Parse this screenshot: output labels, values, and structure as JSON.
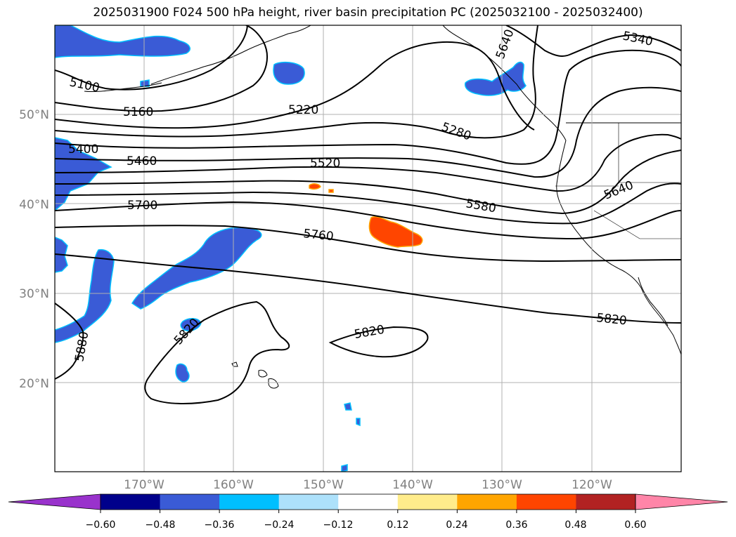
{
  "title": "2025031900 F024 500 hPa height, river basin precipitation PC (2025032100 - 2025032400)",
  "lon_labels": [
    "170°W",
    "160°W",
    "150°W",
    "140°W",
    "130°W",
    "120°W"
  ],
  "lat_labels": [
    "50°N",
    "40°N",
    "30°N",
    "20°N"
  ],
  "contour_labels": [
    "5100",
    "5160",
    "5220",
    "5280",
    "5340",
    "5400",
    "5460",
    "5520",
    "5580",
    "5640",
    "5700",
    "5760",
    "5820",
    "5820",
    "5820",
    "5880",
    "5640"
  ],
  "colorbar": {
    "colors": [
      "#9932cc",
      "#00008b",
      "#3a5bd6",
      "#00bfff",
      "#ade1fb",
      "#ffffff",
      "#ffec8b",
      "#ffa500",
      "#ff4500",
      "#b22222",
      "#ff85a8"
    ],
    "ticks": [
      "−0.60",
      "−0.48",
      "−0.36",
      "−0.24",
      "−0.12",
      "0.12",
      "0.24",
      "0.36",
      "0.48",
      "0.60"
    ]
  },
  "colors": {
    "gridline": "#b0b0b0",
    "contour": "#000000",
    "axis_label": "#808080"
  }
}
